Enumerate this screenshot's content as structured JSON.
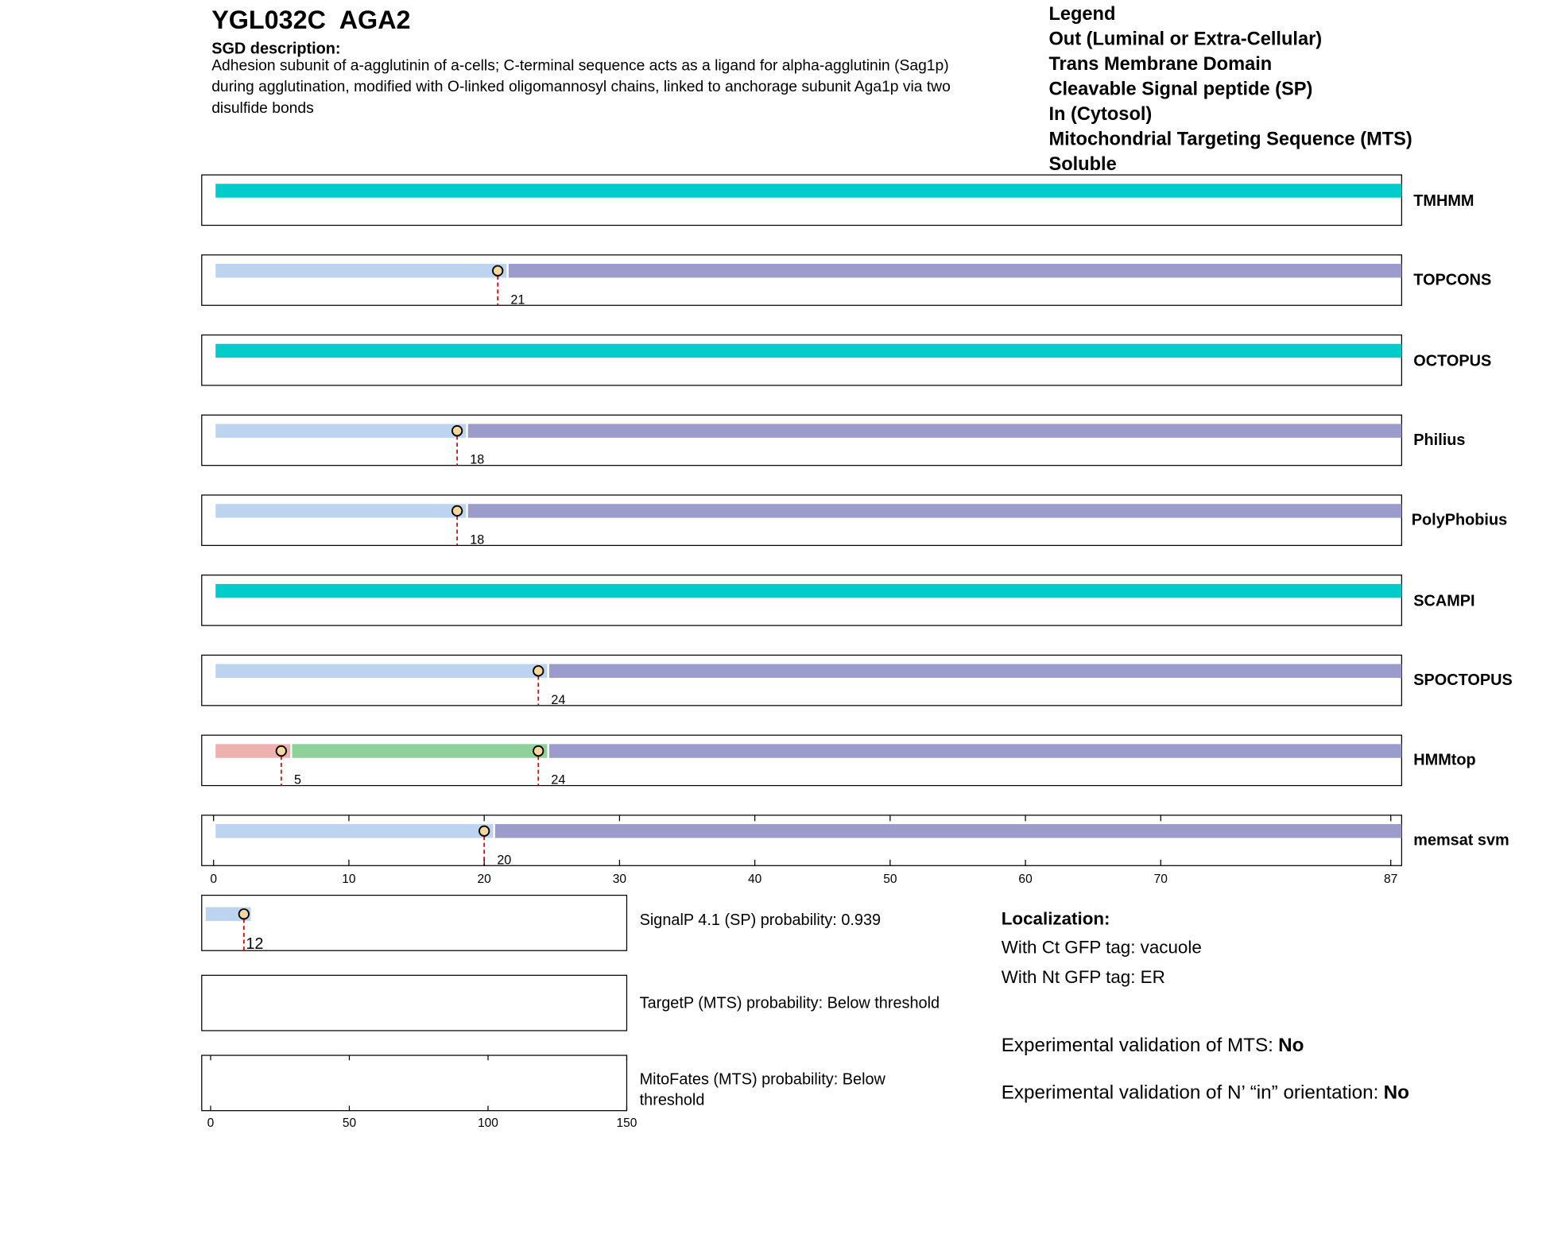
{
  "header": {
    "title": "YGL032C  AGA2",
    "description_label": "SGD description:",
    "description_lines": [
      "Adhesion subunit of a-agglutinin of a-cells; C-terminal sequence acts as a ligand for alpha-agglutinin (Sag1p)",
      "during agglutination, modified with O-linked oligomannosyl chains, linked to anchorage subunit Aga1p via two",
      "disulfide bonds"
    ]
  },
  "legend": {
    "title": "Legend",
    "items": [
      {
        "label": "Out (Luminal or Extra-Cellular)",
        "color": "#9b9bcc"
      },
      {
        "label": "Trans Membrane Domain",
        "color": "#8fd19b"
      },
      {
        "label": "Cleavable Signal peptide (SP)",
        "color": "#bcd4f0"
      },
      {
        "label": "In (Cytosol)",
        "color": "#efb0b0"
      },
      {
        "label": "Mitochondrial Targeting Sequence (MTS)",
        "color": "#e8b020"
      },
      {
        "label": "Soluble",
        "color": "#00cccc"
      }
    ]
  },
  "tracks": {
    "xlim": [
      0,
      87
    ],
    "xticks": [
      0,
      10,
      20,
      30,
      40,
      50,
      60,
      70,
      87
    ],
    "items": [
      {
        "name": "TMHMM",
        "segments": [
          {
            "start": 0,
            "end": 87,
            "color": "#00cccc"
          }
        ],
        "sites": []
      },
      {
        "name": "TOPCONS",
        "segments": [
          {
            "start": 0,
            "end": 21,
            "color": "#bcd4f0"
          },
          {
            "start": 21,
            "end": 87,
            "color": "#9b9bcc"
          }
        ],
        "sites": [
          21
        ]
      },
      {
        "name": "OCTOPUS",
        "segments": [
          {
            "start": 0,
            "end": 87,
            "color": "#00cccc"
          }
        ],
        "sites": []
      },
      {
        "name": "Philius",
        "segments": [
          {
            "start": 0,
            "end": 18,
            "color": "#bcd4f0"
          },
          {
            "start": 18,
            "end": 87,
            "color": "#9b9bcc"
          }
        ],
        "sites": [
          18
        ]
      },
      {
        "name": "PolyPhobius",
        "segments": [
          {
            "start": 0,
            "end": 18,
            "color": "#bcd4f0"
          },
          {
            "start": 18,
            "end": 87,
            "color": "#9b9bcc"
          }
        ],
        "sites": [
          18
        ]
      },
      {
        "name": "SCAMPI",
        "segments": [
          {
            "start": 0,
            "end": 87,
            "color": "#00cccc"
          }
        ],
        "sites": []
      },
      {
        "name": "SPOCTOPUS",
        "segments": [
          {
            "start": 0,
            "end": 24,
            "color": "#bcd4f0"
          },
          {
            "start": 24,
            "end": 87,
            "color": "#9b9bcc"
          }
        ],
        "sites": [
          24
        ]
      },
      {
        "name": "HMMtop",
        "segments": [
          {
            "start": 0,
            "end": 5,
            "color": "#efb0b0"
          },
          {
            "start": 5,
            "end": 24,
            "color": "#8fd19b"
          },
          {
            "start": 24,
            "end": 87,
            "color": "#9b9bcc"
          }
        ],
        "sites": [
          5,
          24
        ]
      },
      {
        "name": "memsat svm",
        "segments": [
          {
            "start": 0,
            "end": 20,
            "color": "#bcd4f0"
          },
          {
            "start": 20,
            "end": 87,
            "color": "#9b9bcc"
          }
        ],
        "sites": [
          20
        ]
      }
    ]
  },
  "signal_panels": {
    "xlim": [
      0,
      150
    ],
    "xticks": [
      0,
      50,
      100,
      150
    ],
    "items": [
      {
        "text_lines": [
          "SignalP 4.1 (SP) probability: 0.939"
        ],
        "segments": [
          {
            "start": 0,
            "end": 12,
            "color": "#bcd4f0"
          }
        ],
        "sites": [
          12
        ]
      },
      {
        "text_lines": [
          "TargetP (MTS) probability: Below threshold"
        ],
        "segments": [],
        "sites": []
      },
      {
        "text_lines": [
          "MitoFates (MTS) probability: Below",
          "threshold"
        ],
        "segments": [],
        "sites": []
      }
    ]
  },
  "localization": {
    "title": "Localization:",
    "lines": [
      "With Ct GFP tag: vacuole",
      "With Nt GFP tag: ER"
    ],
    "validations": [
      {
        "label": "Experimental validation of MTS:",
        "answer": "No"
      },
      {
        "label": "Experimental validation of N’ “in” orientation:",
        "answer": "No"
      }
    ]
  }
}
